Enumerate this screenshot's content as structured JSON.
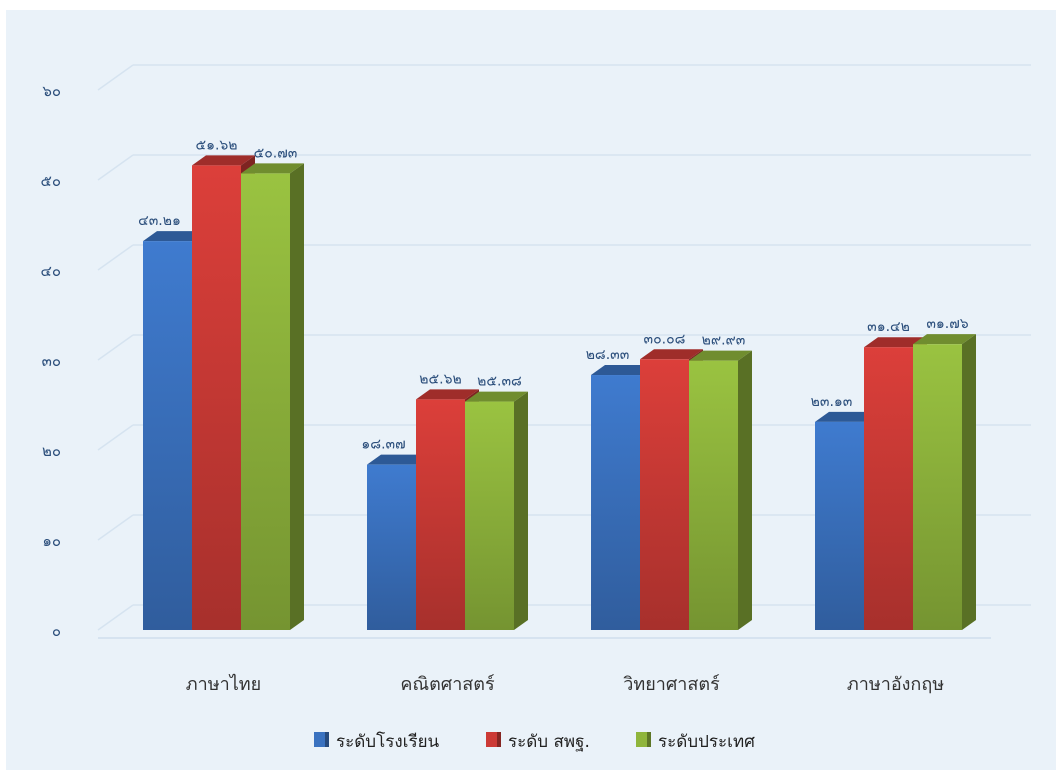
{
  "chart_data": {
    "type": "bar",
    "categories": [
      "ภาษาไทย",
      "คณิตศาสตร์",
      "วิทยาศาสตร์",
      "ภาษาอังกฤษ"
    ],
    "series": [
      {
        "name": "ระดับโรงเรียน",
        "color": "#3a72c0",
        "values": [
          43.21,
          18.37,
          28.33,
          23.13
        ],
        "labels": [
          "๔๓.๒๑",
          "๑๘.๓๗",
          "๒๘.๓๓",
          "๒๓.๑๓"
        ]
      },
      {
        "name": "ระดับ สพฐ.",
        "color": "#cc3a36",
        "values": [
          51.62,
          25.62,
          30.08,
          31.42
        ],
        "labels": [
          "๕๑.๖๒",
          "๒๕.๖๒",
          "๓๐.๐๘",
          "๓๑.๔๒"
        ]
      },
      {
        "name": "ระดับประเทศ",
        "color": "#8fb53c",
        "values": [
          50.73,
          25.38,
          29.93,
          31.76
        ],
        "labels": [
          "๕๐.๗๓",
          "๒๕.๓๘",
          "๒๙.๙๓",
          "๓๑.๗๖"
        ]
      }
    ],
    "yticks": [
      0,
      10,
      20,
      30,
      40,
      50,
      60
    ],
    "ytick_labels": [
      "๐",
      "๑๐",
      "๒๐",
      "๓๐",
      "๔๐",
      "๕๐",
      "๖๐"
    ],
    "ylim": [
      0,
      60
    ],
    "grid": true,
    "legend_position": "bottom",
    "style": "3d-column"
  }
}
